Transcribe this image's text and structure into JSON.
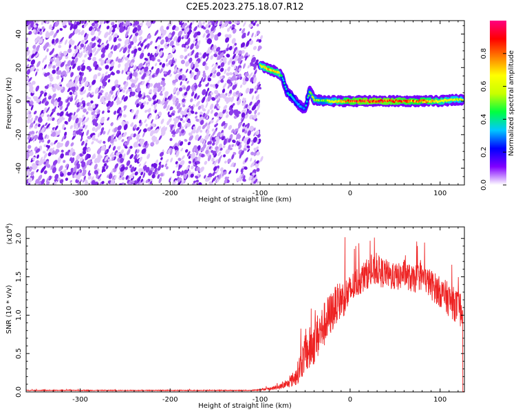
{
  "title": "C2E5.2023.275.18.07.R12",
  "chart_data": [
    {
      "type": "heatmap",
      "title": "C2E5.2023.275.18.07.R12",
      "xlabel": "Height of straight line (km)",
      "ylabel": "Frequency (Hz)",
      "xlim": [
        -360,
        127
      ],
      "ylim": [
        -50,
        48
      ],
      "x_ticks": [
        -300,
        -200,
        -100,
        0,
        100
      ],
      "y_ticks": [
        -40,
        -20,
        0,
        20,
        40
      ],
      "colorbar": {
        "label": "Normalized spectral amplitude",
        "range": [
          0,
          1
        ],
        "ticks": [
          0.0,
          0.2,
          0.4,
          0.6,
          0.8
        ],
        "colormap": [
          "#ffffff",
          "#8000ff",
          "#0000ff",
          "#00c8ff",
          "#00ff40",
          "#c8ff00",
          "#ffff00",
          "#ff8000",
          "#ff0000",
          "#ff0080"
        ]
      },
      "regions": [
        {
          "x_range": [
            -360,
            -100
          ],
          "y_range": [
            -50,
            48
          ],
          "amplitude": 0.05,
          "pattern": "noise"
        }
      ],
      "signal_trace": [
        {
          "x": -100,
          "y": 21,
          "amplitude": 0.6
        },
        {
          "x": -90,
          "y": 19,
          "amplitude": 0.75
        },
        {
          "x": -80,
          "y": 17,
          "amplitude": 0.7
        },
        {
          "x": -75,
          "y": 14,
          "amplitude": 0.4
        },
        {
          "x": -70,
          "y": 5,
          "amplitude": 0.35
        },
        {
          "x": -65,
          "y": 3,
          "amplitude": 0.4
        },
        {
          "x": -58,
          "y": -2,
          "amplitude": 0.35
        },
        {
          "x": -50,
          "y": -5,
          "amplitude": 0.3
        },
        {
          "x": -45,
          "y": 6,
          "amplitude": 0.5
        },
        {
          "x": -40,
          "y": 1,
          "amplitude": 0.55
        },
        {
          "x": -30,
          "y": 0,
          "amplitude": 0.5
        },
        {
          "x": -20,
          "y": 0,
          "amplitude": 0.6
        },
        {
          "x": 0,
          "y": 0,
          "amplitude": 0.85
        },
        {
          "x": 20,
          "y": 0,
          "amplitude": 0.9
        },
        {
          "x": 40,
          "y": 0,
          "amplitude": 0.9
        },
        {
          "x": 60,
          "y": 0,
          "amplitude": 0.85
        },
        {
          "x": 80,
          "y": 0,
          "amplitude": 0.8
        },
        {
          "x": 100,
          "y": 0,
          "amplitude": 0.7
        },
        {
          "x": 120,
          "y": 1,
          "amplitude": 0.6
        }
      ]
    },
    {
      "type": "line",
      "xlabel": "Height of straight line (km)",
      "ylabel": "SNR (10 * v/v)",
      "y_multiplier_label": "(x10",
      "y_multiplier_exp": "4",
      "xlim": [
        -360,
        127
      ],
      "ylim": [
        0,
        2.15
      ],
      "x_ticks": [
        -300,
        -200,
        -100,
        0,
        100
      ],
      "y_ticks": [
        0.0,
        0.5,
        1.0,
        1.5,
        2.0
      ],
      "y_tick_labels": [
        "0.0",
        "0.5",
        "1.0",
        "1.5",
        "2.0"
      ],
      "series": [
        {
          "color": "#ee2222",
          "x": [
            -360,
            -300,
            -200,
            -110,
            -100,
            -90,
            -80,
            -70,
            -60,
            -55,
            -50,
            -45,
            -40,
            -35,
            -30,
            -25,
            -20,
            -15,
            -10,
            -5,
            0,
            5,
            10,
            15,
            20,
            25,
            30,
            35,
            40,
            45,
            50,
            55,
            60,
            65,
            70,
            75,
            80,
            85,
            90,
            95,
            100,
            105,
            110,
            115,
            120,
            125
          ],
          "y": [
            0.02,
            0.02,
            0.02,
            0.02,
            0.03,
            0.04,
            0.06,
            0.1,
            0.2,
            0.35,
            0.5,
            0.55,
            0.65,
            0.75,
            0.85,
            0.95,
            1.05,
            1.15,
            1.2,
            1.25,
            1.3,
            1.4,
            1.45,
            1.5,
            1.55,
            1.55,
            1.6,
            1.55,
            1.55,
            1.5,
            1.5,
            1.5,
            1.55,
            1.5,
            1.45,
            1.5,
            1.5,
            1.45,
            1.4,
            1.35,
            1.3,
            1.25,
            1.2,
            1.15,
            1.1,
            1.05
          ],
          "noise": [
            0.005,
            0.005,
            0.005,
            0.005,
            0.01,
            0.02,
            0.03,
            0.05,
            0.12,
            0.2,
            0.25,
            0.3,
            0.3,
            0.3,
            0.3,
            0.3,
            0.28,
            0.25,
            0.25,
            0.25,
            0.22,
            0.2,
            0.2,
            0.2,
            0.2,
            0.2,
            0.2,
            0.2,
            0.18,
            0.18,
            0.18,
            0.18,
            0.18,
            0.18,
            0.18,
            0.18,
            0.18,
            0.18,
            0.2,
            0.2,
            0.2,
            0.22,
            0.22,
            0.22,
            0.22,
            0.25
          ]
        }
      ]
    }
  ]
}
